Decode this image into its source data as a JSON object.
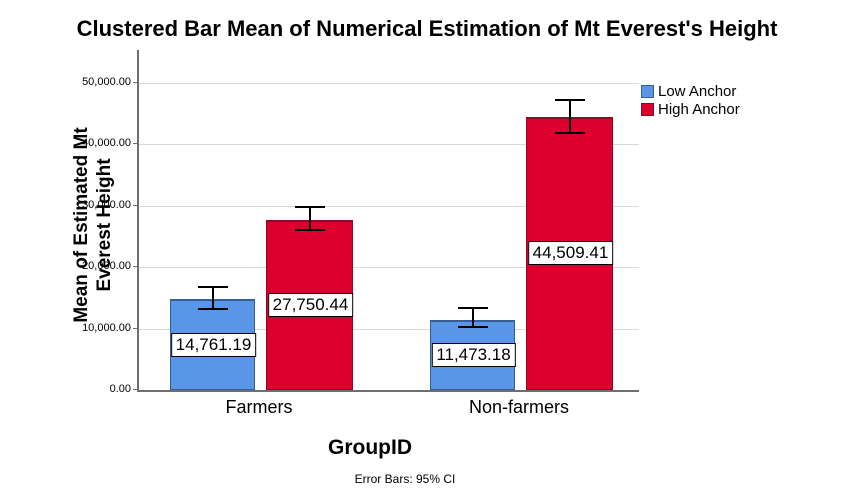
{
  "title": "Clustered Bar Mean of Numerical Estimation of Mt Everest's Height",
  "footnote": "Error Bars: 95% CI",
  "colors": {
    "low_anchor": "#5A96E8",
    "low_anchor_border": "#355E91",
    "high_anchor": "#DB002D",
    "high_anchor_border": "#8E0A22",
    "gridline": "#D9D9D9",
    "axis": "#6E6E6E"
  },
  "chart_data": {
    "type": "bar",
    "title": "Clustered Bar Mean of Numerical Estimation of Mt Everest's Height",
    "xlabel": "GroupID",
    "ylabel": "Mean of Estimated Mt Everest Height",
    "ylabel_lines": [
      "Mean of Estimated Mt",
      "Everest Height"
    ],
    "categories": [
      "Farmers",
      "Non-farmers"
    ],
    "series": [
      {
        "name": "Low Anchor",
        "color": "#5A96E8",
        "border_color": "#355E91",
        "values": [
          14761.19,
          11473.18
        ],
        "value_labels": [
          "14,761.19",
          "11,473.18"
        ],
        "error_bar_low": [
          13200,
          10300
        ],
        "error_bar_high": [
          16800,
          13400
        ]
      },
      {
        "name": "High Anchor",
        "color": "#DB002D",
        "border_color": "#8E0A22",
        "values": [
          27750.44,
          44509.41
        ],
        "value_labels": [
          "27,750.44",
          "44,509.41"
        ],
        "error_bar_low": [
          26100,
          41900
        ],
        "error_bar_high": [
          29800,
          47200
        ]
      }
    ],
    "ylim": [
      0,
      50000
    ],
    "yticks": [
      0,
      10000,
      20000,
      30000,
      40000,
      50000
    ],
    "ytick_labels": [
      "0.00",
      "10,000.00",
      "20,000.00",
      "30,000.00",
      "40,000.00",
      "50,000.00"
    ],
    "grid": true,
    "legend_position": "top-right-outside",
    "error_bars": "95% CI"
  }
}
